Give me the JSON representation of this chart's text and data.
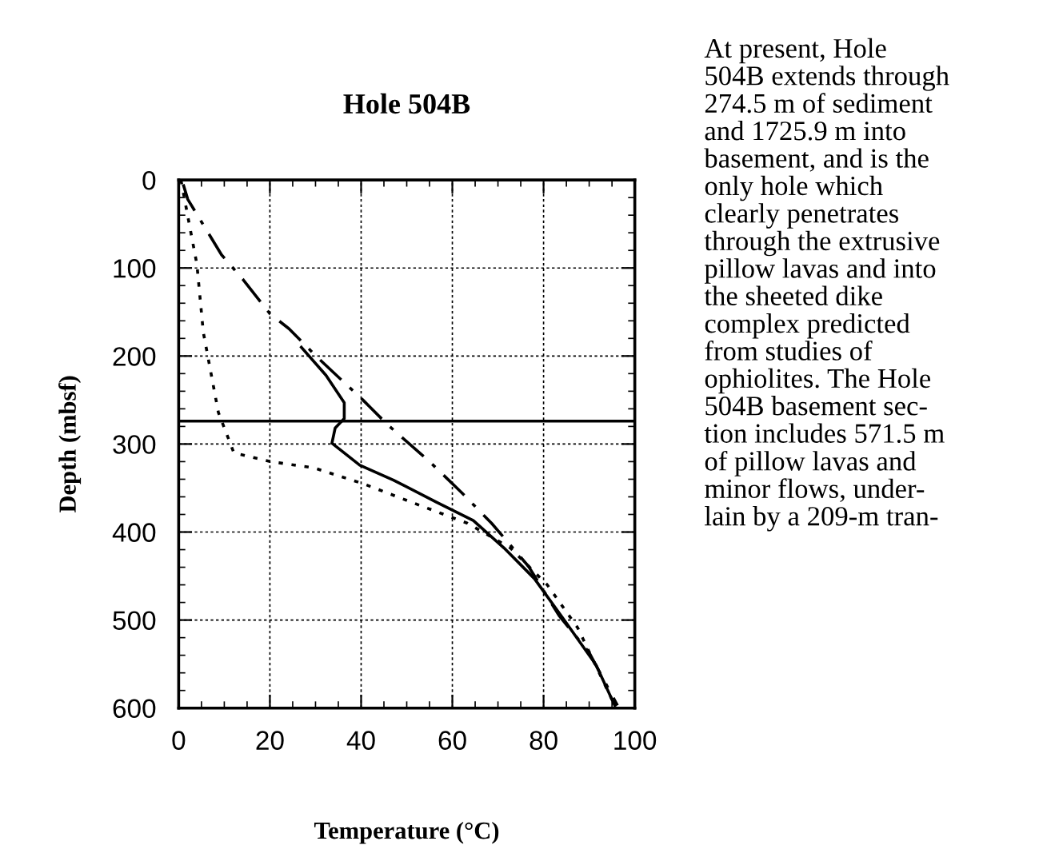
{
  "chart_data": {
    "type": "line",
    "title": "Hole 504B",
    "xlabel": "Temperature (°C)",
    "ylabel": "Depth (mbsf)",
    "xlim": [
      0,
      100
    ],
    "xticks": [
      0,
      20,
      40,
      60,
      80,
      100
    ],
    "ylim": [
      600,
      0
    ],
    "yticks": [
      0,
      100,
      200,
      300,
      400,
      500,
      600
    ],
    "grid": true,
    "legend": false,
    "series": [
      {
        "color": "#000000",
        "line_style": "dotted",
        "x": [
          0.5,
          1.3,
          4,
          5.4,
          8.7,
          12.1,
          20.2,
          29.6,
          40.4,
          52.5,
          63.3,
          72.7,
          80.8,
          87.5,
          95.6
        ],
        "values": [
          0,
          22,
          96,
          173,
          264,
          310,
          320,
          327,
          345,
          369,
          390,
          418,
          460,
          509,
          597
        ]
      },
      {
        "color": "#000000",
        "line_style": "dashdot",
        "x": [
          1,
          2,
          9.4,
          14.1,
          20,
          24.2,
          30.3,
          40.4,
          45.8,
          55,
          62,
          68.6,
          76.7,
          83.4,
          90,
          96.2
        ],
        "values": [
          5,
          22,
          85,
          113,
          152,
          169,
          201,
          250,
          278,
          320,
          355,
          390,
          439,
          495,
          537,
          597
        ]
      },
      {
        "color": "#000000",
        "line_style": "solid",
        "x": [
          26.9,
          32.3,
          36.3,
          36.3,
          34.3,
          33.6,
          39.7,
          47.1,
          56.5,
          64.6,
          71.3,
          78,
          84.8,
          91.5,
          95.6
        ],
        "values": [
          190,
          222,
          253,
          271,
          282,
          299,
          324,
          341,
          366,
          387,
          418,
          453,
          502,
          551,
          597
        ]
      }
    ],
    "ref_lines": [
      {
        "axis": "y",
        "value": 274,
        "color": "#000000",
        "line_style": "solid"
      }
    ],
    "annotations": [
      "At present, Hole\n504B extends through\n274.5 m of sediment\nand 1725.9 m into\nbasement, and is the\nonly hole which\nclearly penetrates\nthrough the extrusive\npillow lavas and into\nthe sheeted dike\ncomplex predicted\nfrom studies of\nophiolites. The Hole\n504B basement sec-\ntion includes 571.5 m\nof pillow lavas and\nminor flows, under-\nlain by a 209-m tran-"
    ]
  }
}
